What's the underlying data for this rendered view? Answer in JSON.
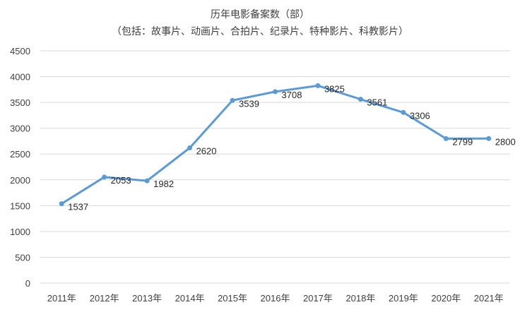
{
  "chart_data": {
    "type": "line",
    "title": "历年电影备案数（部）",
    "subtitle": "（包括：故事片、动画片、合拍片、纪录片、特种影片、科教影片）",
    "xlabel": "",
    "ylabel": "",
    "categories": [
      "2011年",
      "2012年",
      "2013年",
      "2014年",
      "2015年",
      "2016年",
      "2017年",
      "2018年",
      "2019年",
      "2020年",
      "2021年"
    ],
    "series": [
      {
        "values": [
          1537,
          2053,
          1982,
          2620,
          3539,
          3708,
          3825,
          3561,
          3306,
          2799,
          2800
        ],
        "color": "#5b9bd5"
      }
    ],
    "ylim": [
      0,
      4500
    ],
    "yticks": [
      0,
      500,
      1000,
      1500,
      2000,
      2500,
      3000,
      3500,
      4000,
      4500
    ],
    "grid": true,
    "legend": "none",
    "data_labels": true
  }
}
